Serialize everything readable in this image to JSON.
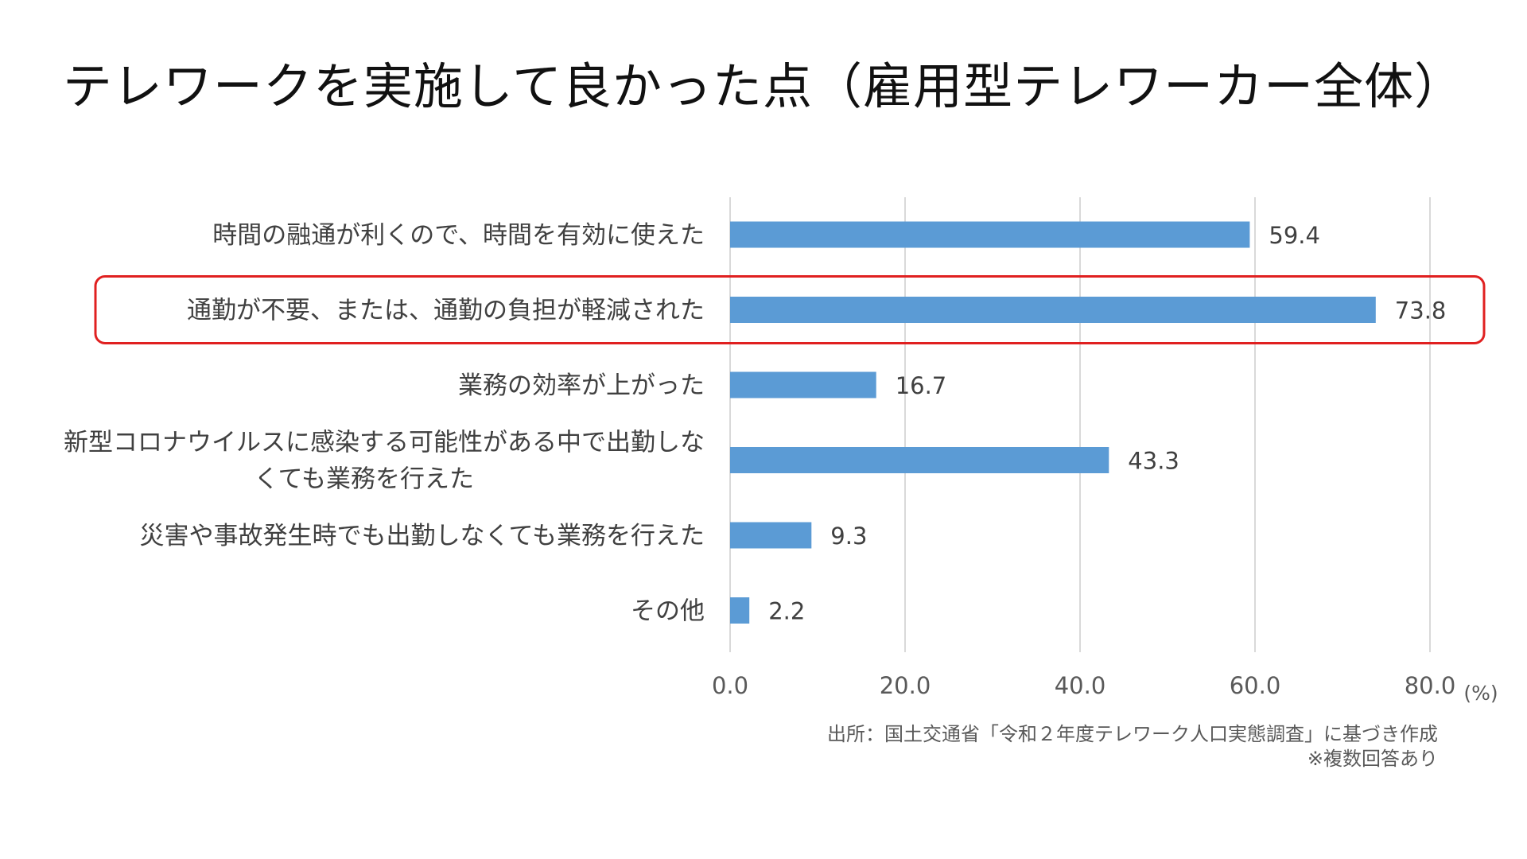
{
  "title": "テレワークを実施して良かった点（雇用型テレワーカー全体）",
  "source": "出所：国土交通省「令和２年度テレワーク人口実態調査」に基づき作成",
  "note": "※複数回答あり",
  "colors": {
    "bar": "#5b9bd5",
    "highlight": "#e02020",
    "grid": "#d9d9d9"
  },
  "chart_data": {
    "type": "bar",
    "orientation": "horizontal",
    "categories": [
      [
        "時間の融通が利くので、時間を有効に使えた"
      ],
      [
        "通勤が不要、または、通勤の負担が軽減された"
      ],
      [
        "業務の効率が上がった"
      ],
      [
        "新型コロナウイルスに感染する可能性がある中で出勤しな",
        "くても業務を行えた"
      ],
      [
        "災害や事故発生時でも出勤しなくても業務を行えた"
      ],
      [
        "その他"
      ]
    ],
    "values": [
      59.4,
      73.8,
      16.7,
      43.3,
      9.3,
      2.2
    ],
    "value_labels": [
      "59.4",
      "73.8",
      "16.7",
      "43.3",
      "9.3",
      "2.2"
    ],
    "xlim": [
      0,
      80
    ],
    "ticks": [
      0,
      20,
      40,
      60,
      80
    ],
    "tick_labels": [
      "0.0",
      "20.0",
      "40.0",
      "60.0",
      "80.0"
    ],
    "unit": "(%)",
    "highlighted_index": 1,
    "grid": true
  }
}
